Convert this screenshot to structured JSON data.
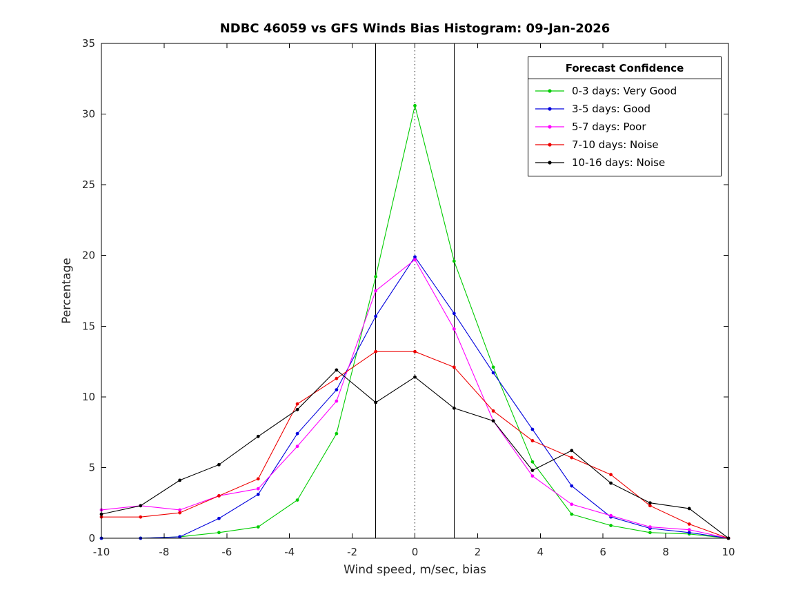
{
  "chart_data": {
    "type": "line",
    "title": "NDBC 46059 vs GFS Winds Bias Histogram: 09-Jan-2026",
    "xlabel": "Wind speed, m/sec, bias",
    "ylabel": "Percentage",
    "xlim": [
      -10,
      10
    ],
    "ylim": [
      0,
      35
    ],
    "xticks": [
      -10,
      -8,
      -6,
      -4,
      -2,
      0,
      2,
      4,
      6,
      8,
      10
    ],
    "yticks": [
      0,
      5,
      10,
      15,
      20,
      25,
      30,
      35
    ],
    "grid": false,
    "marker": "point",
    "legend": {
      "title": "Forecast Confidence",
      "position": "top-right"
    },
    "vlines": {
      "solid": [
        -1.25,
        1.25
      ],
      "dotted": [
        0
      ],
      "color": "#000000"
    },
    "x": [
      -10,
      -8.75,
      -7.5,
      -6.25,
      -5,
      -3.75,
      -2.5,
      -1.25,
      0,
      1.25,
      2.5,
      3.75,
      5,
      6.25,
      7.5,
      8.75,
      10
    ],
    "series": [
      {
        "name": "0-3 days: Very Good",
        "color": "#00cc00",
        "values": [
          0,
          0,
          0.1,
          0.4,
          0.8,
          2.7,
          7.4,
          18.5,
          30.6,
          19.6,
          12.1,
          5.4,
          1.7,
          0.9,
          0.4,
          0.3,
          0
        ]
      },
      {
        "name": "3-5 days: Good",
        "color": "#0000dd",
        "values": [
          0,
          0,
          0.1,
          1.4,
          3.1,
          7.4,
          10.5,
          15.7,
          19.9,
          15.9,
          11.7,
          7.7,
          3.7,
          1.5,
          0.7,
          0.4,
          0
        ]
      },
      {
        "name": "5-7 days: Poor",
        "color": "#ff00ff",
        "values": [
          2.0,
          2.3,
          2.0,
          3.0,
          3.5,
          6.5,
          9.7,
          17.5,
          19.7,
          14.8,
          8.3,
          4.4,
          2.4,
          1.6,
          0.8,
          0.6,
          0
        ]
      },
      {
        "name": "7-10 days: Noise",
        "color": "#ee0000",
        "values": [
          1.5,
          1.5,
          1.8,
          3.0,
          4.2,
          9.5,
          11.3,
          13.2,
          13.2,
          12.1,
          9.0,
          6.9,
          5.7,
          4.5,
          2.3,
          1.0,
          0
        ]
      },
      {
        "name": "10-16 days: Noise",
        "color": "#000000",
        "values": [
          1.7,
          2.3,
          4.1,
          5.2,
          7.2,
          9.1,
          11.9,
          9.6,
          11.4,
          9.2,
          8.3,
          4.8,
          6.2,
          3.9,
          2.5,
          2.1,
          0
        ]
      }
    ]
  }
}
